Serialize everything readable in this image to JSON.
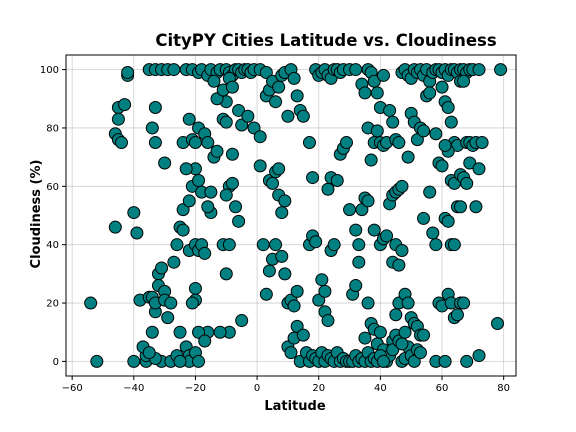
{
  "chart_data": {
    "type": "scatter",
    "title": "CityPY Cities Latitude vs. Cloudiness",
    "xlabel": "Latitude",
    "ylabel": "Cloudiness (%)",
    "xlim": [
      -62,
      84
    ],
    "ylim": [
      -5,
      105
    ],
    "xticks": [
      -60,
      -40,
      -20,
      0,
      20,
      40,
      60,
      80
    ],
    "yticks": [
      0,
      20,
      40,
      60,
      80,
      100
    ],
    "grid": true,
    "marker_color": "#008080",
    "edge_color": "#000000",
    "points": [
      [
        -54,
        20
      ],
      [
        -52,
        0
      ],
      [
        -46,
        78
      ],
      [
        -45,
        87
      ],
      [
        -45,
        83
      ],
      [
        -45,
        76
      ],
      [
        -44,
        75
      ],
      [
        -43,
        88
      ],
      [
        -42,
        98
      ],
      [
        -42,
        99
      ],
      [
        -46,
        46
      ],
      [
        -40,
        51
      ],
      [
        -39,
        44
      ],
      [
        -38,
        21
      ],
      [
        -40,
        0
      ],
      [
        -36,
        0
      ],
      [
        -36,
        2
      ],
      [
        -37,
        5
      ],
      [
        -35,
        22
      ],
      [
        -34,
        22
      ],
      [
        -34,
        10
      ],
      [
        -33,
        17
      ],
      [
        -33,
        20
      ],
      [
        -32,
        30
      ],
      [
        -32,
        26
      ],
      [
        -31,
        32
      ],
      [
        -30,
        24
      ],
      [
        -30,
        21
      ],
      [
        -29,
        15
      ],
      [
        -28,
        20
      ],
      [
        -31,
        0
      ],
      [
        -33,
        1
      ],
      [
        -35,
        3
      ],
      [
        -28,
        0
      ],
      [
        -26,
        2
      ],
      [
        -25,
        10
      ],
      [
        -23,
        5
      ],
      [
        -22,
        2
      ],
      [
        -22,
        0
      ],
      [
        -20,
        3
      ],
      [
        -27,
        34
      ],
      [
        -26,
        40
      ],
      [
        -25,
        46
      ],
      [
        -24,
        45
      ],
      [
        -22,
        38
      ],
      [
        -20,
        40
      ],
      [
        -19,
        38
      ],
      [
        -18,
        40
      ],
      [
        -17,
        37
      ],
      [
        -24,
        52
      ],
      [
        -22,
        55
      ],
      [
        -21,
        60
      ],
      [
        -20,
        66
      ],
      [
        -19,
        62
      ],
      [
        -18,
        58
      ],
      [
        -23,
        66
      ],
      [
        -24,
        75
      ],
      [
        -22,
        83
      ],
      [
        -21,
        76
      ],
      [
        -20,
        75
      ],
      [
        -19,
        80
      ],
      [
        -17,
        78
      ],
      [
        -16,
        75
      ],
      [
        -15,
        58
      ],
      [
        -15,
        51
      ],
      [
        -16,
        53
      ],
      [
        -14,
        70
      ],
      [
        -13,
        72
      ],
      [
        -11,
        83
      ],
      [
        -10,
        89
      ],
      [
        -30,
        68
      ],
      [
        -33,
        75
      ],
      [
        -34,
        80
      ],
      [
        -33,
        87
      ],
      [
        -35,
        100
      ],
      [
        -33,
        100
      ],
      [
        -31,
        100
      ],
      [
        -29,
        100
      ],
      [
        -27,
        100
      ],
      [
        -23,
        100
      ],
      [
        -21,
        100
      ],
      [
        -19,
        99
      ],
      [
        -18,
        100
      ],
      [
        -16,
        98
      ],
      [
        -15,
        100
      ],
      [
        -13,
        99
      ],
      [
        -12,
        100
      ],
      [
        -10,
        100
      ],
      [
        -9,
        99
      ],
      [
        -8,
        98
      ],
      [
        -7,
        100
      ],
      [
        -6,
        100
      ],
      [
        -5,
        99
      ],
      [
        -4,
        100
      ],
      [
        -3,
        100
      ],
      [
        -2,
        99
      ],
      [
        -1,
        100
      ],
      [
        1,
        100
      ],
      [
        3,
        99
      ],
      [
        -14,
        96
      ],
      [
        -13,
        90
      ],
      [
        -11,
        93
      ],
      [
        -10,
        82
      ],
      [
        -9,
        97
      ],
      [
        -8,
        94
      ],
      [
        -6,
        86
      ],
      [
        -5,
        81
      ],
      [
        -3,
        84
      ],
      [
        -1,
        80
      ],
      [
        1,
        77
      ],
      [
        -9,
        60
      ],
      [
        -8,
        61
      ],
      [
        -7,
        53
      ],
      [
        -10,
        57
      ],
      [
        -11,
        40
      ],
      [
        -9,
        40
      ],
      [
        -8,
        71
      ],
      [
        -6,
        48
      ],
      [
        -5,
        14
      ],
      [
        -10,
        30
      ],
      [
        -9,
        10
      ],
      [
        -12,
        10
      ],
      [
        -16,
        10
      ],
      [
        -19,
        10
      ],
      [
        -20,
        25
      ],
      [
        -20,
        21
      ],
      [
        -21,
        20
      ],
      [
        -17,
        7
      ],
      [
        -19,
        0
      ],
      [
        -25,
        0
      ],
      [
        1,
        67
      ],
      [
        2,
        40
      ],
      [
        3,
        23
      ],
      [
        4,
        31
      ],
      [
        5,
        35
      ],
      [
        6,
        40
      ],
      [
        4,
        62
      ],
      [
        5,
        61
      ],
      [
        6,
        65
      ],
      [
        7,
        66
      ],
      [
        7,
        57
      ],
      [
        8,
        51
      ],
      [
        9,
        55
      ],
      [
        3,
        91
      ],
      [
        4,
        93
      ],
      [
        5,
        96
      ],
      [
        6,
        89
      ],
      [
        7,
        94
      ],
      [
        8,
        98
      ],
      [
        9,
        99
      ],
      [
        10,
        84
      ],
      [
        11,
        100
      ],
      [
        12,
        97
      ],
      [
        13,
        91
      ],
      [
        14,
        86
      ],
      [
        15,
        84
      ],
      [
        8,
        36
      ],
      [
        9,
        30
      ],
      [
        10,
        20
      ],
      [
        11,
        21
      ],
      [
        12,
        19
      ],
      [
        13,
        24
      ],
      [
        10,
        5
      ],
      [
        11,
        3
      ],
      [
        12,
        8
      ],
      [
        13,
        12
      ],
      [
        14,
        0
      ],
      [
        15,
        9
      ],
      [
        16,
        3
      ],
      [
        17,
        0
      ],
      [
        18,
        2
      ],
      [
        19,
        1
      ],
      [
        20,
        0
      ],
      [
        21,
        3
      ],
      [
        22,
        0
      ],
      [
        23,
        2
      ],
      [
        24,
        1
      ],
      [
        25,
        0
      ],
      [
        26,
        3
      ],
      [
        27,
        0
      ],
      [
        28,
        1
      ],
      [
        29,
        0
      ],
      [
        17,
        40
      ],
      [
        18,
        43
      ],
      [
        19,
        41
      ],
      [
        20,
        21
      ],
      [
        21,
        28
      ],
      [
        22,
        17
      ],
      [
        23,
        14
      ],
      [
        22,
        24
      ],
      [
        24,
        38
      ],
      [
        25,
        40
      ],
      [
        23,
        59
      ],
      [
        24,
        63
      ],
      [
        26,
        62
      ],
      [
        27,
        71
      ],
      [
        28,
        73
      ],
      [
        29,
        75
      ],
      [
        30,
        52
      ],
      [
        31,
        23
      ],
      [
        32,
        26
      ],
      [
        33,
        34
      ],
      [
        32,
        45
      ],
      [
        33,
        40
      ],
      [
        34,
        52
      ],
      [
        17,
        75
      ],
      [
        18,
        63
      ],
      [
        19,
        100
      ],
      [
        20,
        98
      ],
      [
        21,
        99
      ],
      [
        22,
        100
      ],
      [
        23,
        98
      ],
      [
        24,
        97
      ],
      [
        25,
        100
      ],
      [
        26,
        100
      ],
      [
        27,
        99
      ],
      [
        28,
        100
      ],
      [
        30,
        100
      ],
      [
        32,
        100
      ],
      [
        34,
        95
      ],
      [
        35,
        92
      ],
      [
        36,
        100
      ],
      [
        37,
        99
      ],
      [
        38,
        96
      ],
      [
        39,
        92
      ],
      [
        40,
        87
      ],
      [
        41,
        98
      ],
      [
        36,
        80
      ],
      [
        37,
        69
      ],
      [
        38,
        75
      ],
      [
        39,
        79
      ],
      [
        40,
        75
      ],
      [
        41,
        74
      ],
      [
        42,
        75
      ],
      [
        43,
        86
      ],
      [
        44,
        82
      ],
      [
        45,
        76
      ],
      [
        46,
        75
      ],
      [
        35,
        56
      ],
      [
        36,
        55
      ],
      [
        38,
        45
      ],
      [
        40,
        40
      ],
      [
        41,
        42
      ],
      [
        42,
        43
      ],
      [
        43,
        54
      ],
      [
        44,
        57
      ],
      [
        45,
        58
      ],
      [
        46,
        59
      ],
      [
        47,
        60
      ],
      [
        35,
        8
      ],
      [
        36,
        20
      ],
      [
        37,
        13
      ],
      [
        38,
        11
      ],
      [
        39,
        6
      ],
      [
        40,
        10
      ],
      [
        41,
        4
      ],
      [
        42,
        0
      ],
      [
        43,
        2
      ],
      [
        44,
        7
      ],
      [
        45,
        16
      ],
      [
        46,
        20
      ],
      [
        30,
        0
      ],
      [
        31,
        0
      ],
      [
        32,
        2
      ],
      [
        33,
        0
      ],
      [
        34,
        1
      ],
      [
        35,
        0
      ],
      [
        36,
        3
      ],
      [
        37,
        0
      ],
      [
        38,
        1
      ],
      [
        39,
        0
      ],
      [
        40,
        2
      ],
      [
        41,
        0
      ],
      [
        44,
        34
      ],
      [
        45,
        40
      ],
      [
        46,
        33
      ],
      [
        47,
        38
      ],
      [
        48,
        23
      ],
      [
        49,
        20
      ],
      [
        50,
        15
      ],
      [
        51,
        13
      ],
      [
        52,
        12
      ],
      [
        53,
        9
      ],
      [
        54,
        9
      ],
      [
        47,
        0
      ],
      [
        48,
        1
      ],
      [
        49,
        5
      ],
      [
        50,
        2
      ],
      [
        51,
        0
      ],
      [
        52,
        4
      ],
      [
        53,
        3
      ],
      [
        44,
        4
      ],
      [
        45,
        9
      ],
      [
        46,
        7
      ],
      [
        47,
        6
      ],
      [
        48,
        10
      ],
      [
        47,
        99
      ],
      [
        48,
        100
      ],
      [
        49,
        98
      ],
      [
        50,
        97
      ],
      [
        51,
        100
      ],
      [
        52,
        99
      ],
      [
        53,
        100
      ],
      [
        54,
        98
      ],
      [
        55,
        100
      ],
      [
        56,
        96
      ],
      [
        57,
        99
      ],
      [
        49,
        70
      ],
      [
        50,
        85
      ],
      [
        51,
        82
      ],
      [
        52,
        76
      ],
      [
        53,
        80
      ],
      [
        54,
        79
      ],
      [
        55,
        91
      ],
      [
        56,
        92
      ],
      [
        58,
        78
      ],
      [
        59,
        68
      ],
      [
        60,
        67
      ],
      [
        56,
        58
      ],
      [
        54,
        49
      ],
      [
        57,
        44
      ],
      [
        58,
        40
      ],
      [
        59,
        20
      ],
      [
        60,
        19
      ],
      [
        61,
        49
      ],
      [
        62,
        48
      ],
      [
        63,
        40
      ],
      [
        64,
        40
      ],
      [
        65,
        53
      ],
      [
        58,
        0
      ],
      [
        61,
        0
      ],
      [
        62,
        23
      ],
      [
        63,
        20
      ],
      [
        64,
        15
      ],
      [
        65,
        16
      ],
      [
        66,
        20
      ],
      [
        67,
        20
      ],
      [
        68,
        0
      ],
      [
        72,
        2
      ],
      [
        78,
        13
      ],
      [
        58,
        100
      ],
      [
        59,
        100
      ],
      [
        60,
        99
      ],
      [
        61,
        100
      ],
      [
        62,
        98
      ],
      [
        63,
        100
      ],
      [
        64,
        100
      ],
      [
        65,
        99
      ],
      [
        66,
        100
      ],
      [
        67,
        100
      ],
      [
        68,
        99
      ],
      [
        69,
        100
      ],
      [
        70,
        100
      ],
      [
        60,
        94
      ],
      [
        61,
        89
      ],
      [
        62,
        87
      ],
      [
        63,
        82
      ],
      [
        64,
        75
      ],
      [
        65,
        74
      ],
      [
        66,
        96
      ],
      [
        67,
        96
      ],
      [
        68,
        75
      ],
      [
        69,
        75
      ],
      [
        70,
        74
      ],
      [
        71,
        75
      ],
      [
        73,
        75
      ],
      [
        63,
        62
      ],
      [
        64,
        61
      ],
      [
        66,
        64
      ],
      [
        67,
        63
      ],
      [
        68,
        61
      ],
      [
        69,
        68
      ],
      [
        72,
        66
      ],
      [
        71,
        53
      ],
      [
        66,
        53
      ],
      [
        72,
        100
      ],
      [
        79,
        100
      ],
      [
        62,
        72
      ],
      [
        61,
        74
      ]
    ]
  }
}
